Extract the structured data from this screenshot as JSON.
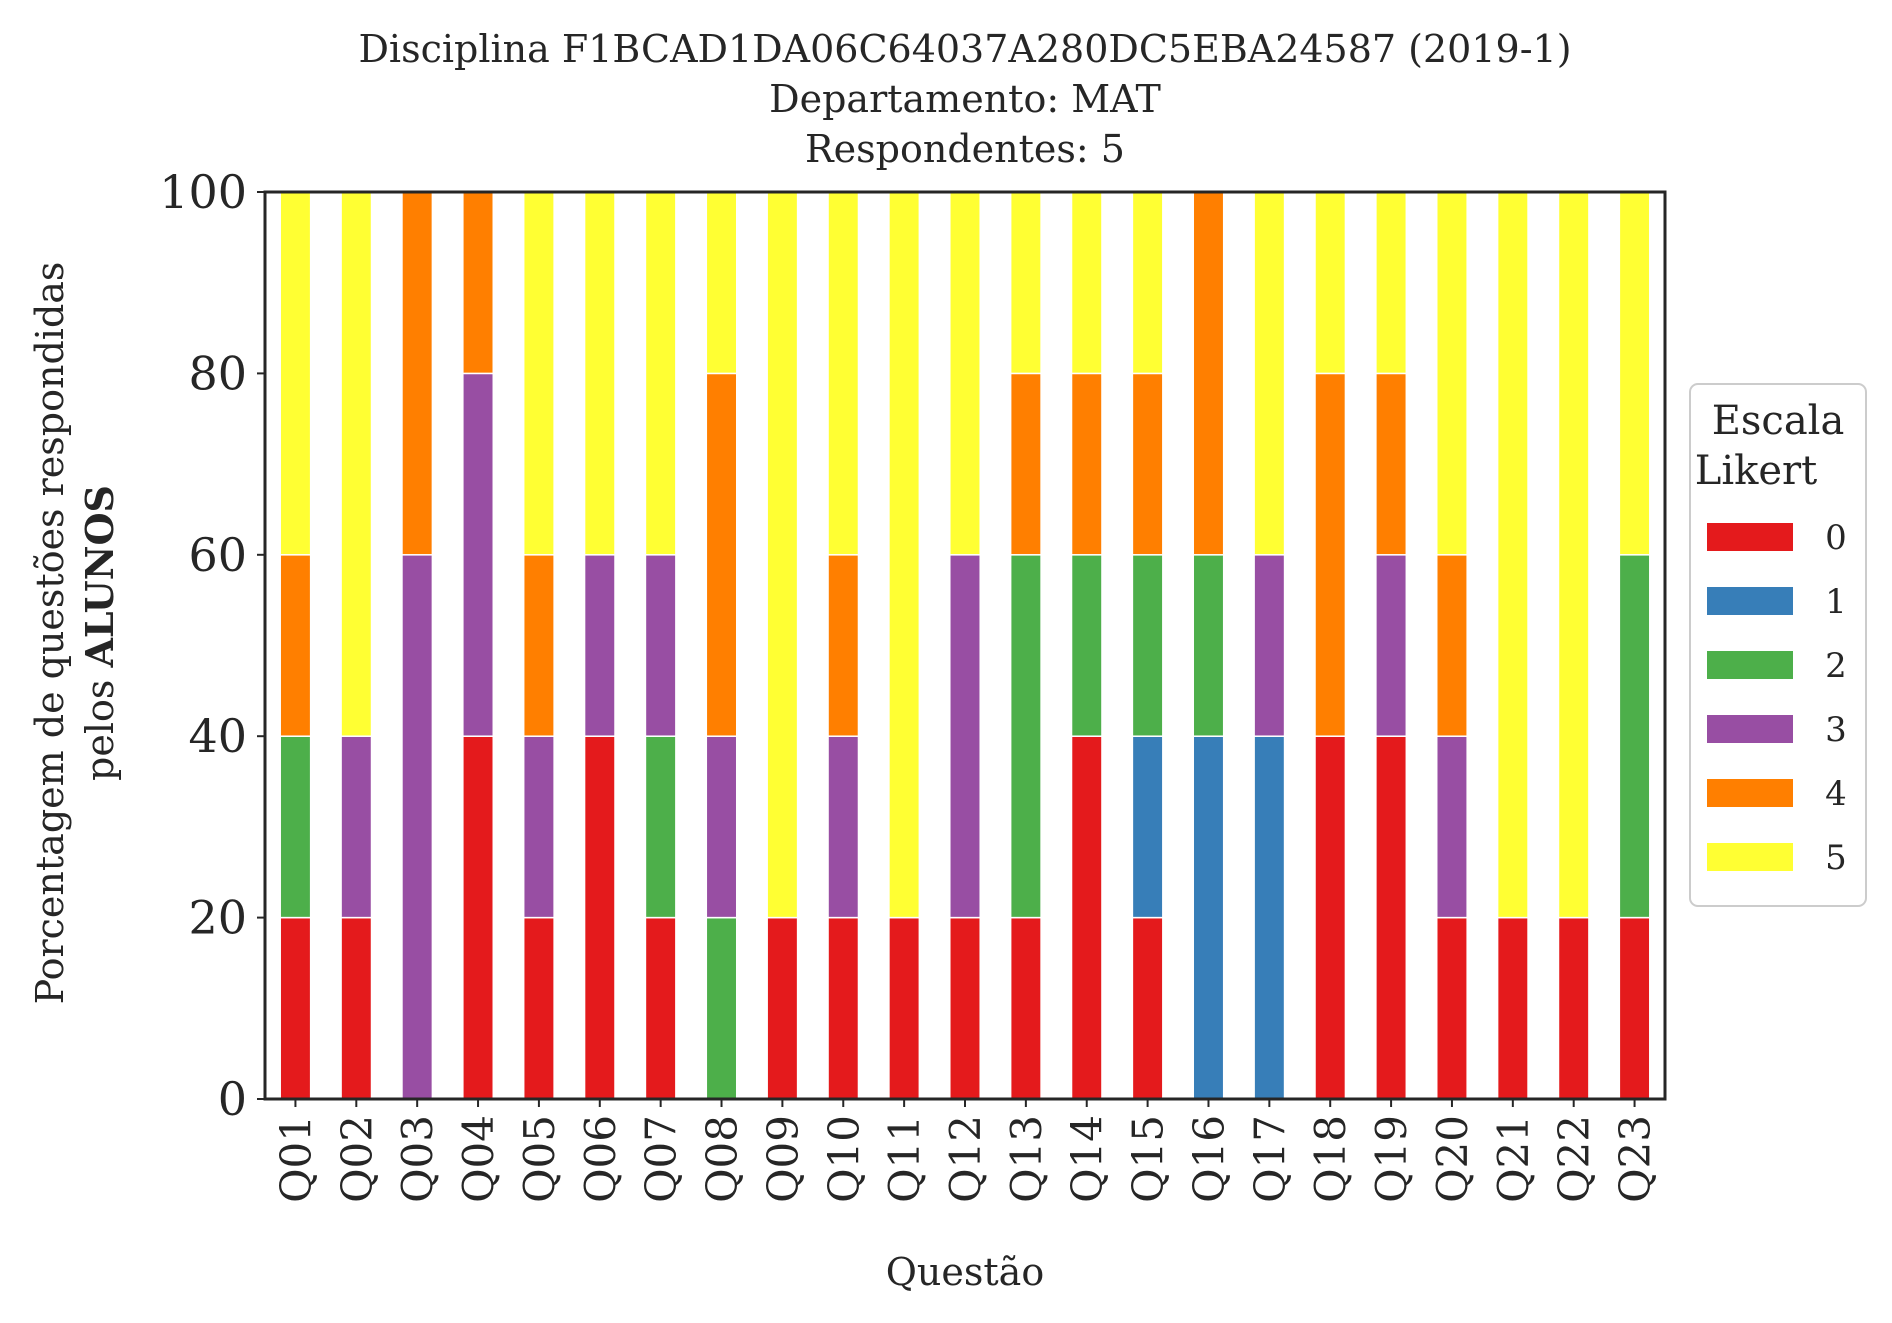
{
  "chart_data": {
    "type": "bar",
    "stacked": true,
    "title_lines": [
      "Disciplina F1BCAD1DA06C64037A280DC5EBA24587 (2019-1)",
      "Departamento: MAT",
      "Respondentes: 5"
    ],
    "xlabel": "Questão",
    "ylabel_line1": "Porcentagem de questões respondidas",
    "ylabel_line2_prefix": "pelos ",
    "ylabel_line2_bold": "ALUNOS",
    "ylim": [
      0,
      100
    ],
    "yticks": [
      0,
      20,
      40,
      60,
      80,
      100
    ],
    "grid": false,
    "legend": {
      "title_line1": "Escala",
      "title_line2": "Likert",
      "placement": "right"
    },
    "categories": [
      "Q01",
      "Q02",
      "Q03",
      "Q04",
      "Q05",
      "Q06",
      "Q07",
      "Q08",
      "Q09",
      "Q10",
      "Q11",
      "Q12",
      "Q13",
      "Q14",
      "Q15",
      "Q16",
      "Q17",
      "Q18",
      "Q19",
      "Q20",
      "Q21",
      "Q22",
      "Q23"
    ],
    "series": [
      {
        "name": "0",
        "color": "#e41a1c",
        "values": [
          20,
          20,
          0,
          40,
          20,
          40,
          20,
          0,
          20,
          20,
          20,
          20,
          20,
          40,
          20,
          0,
          0,
          40,
          40,
          20,
          20,
          20,
          20
        ]
      },
      {
        "name": "1",
        "color": "#377eb8",
        "values": [
          0,
          0,
          0,
          0,
          0,
          0,
          0,
          0,
          0,
          0,
          0,
          0,
          0,
          0,
          20,
          40,
          40,
          0,
          0,
          0,
          0,
          0,
          0
        ]
      },
      {
        "name": "2",
        "color": "#4daf4a",
        "values": [
          20,
          0,
          0,
          0,
          0,
          0,
          20,
          20,
          0,
          0,
          0,
          0,
          40,
          20,
          20,
          20,
          0,
          0,
          0,
          0,
          0,
          0,
          40
        ]
      },
      {
        "name": "3",
        "color": "#984ea3",
        "values": [
          0,
          20,
          60,
          40,
          20,
          20,
          20,
          20,
          0,
          20,
          0,
          40,
          0,
          0,
          0,
          0,
          20,
          0,
          20,
          20,
          0,
          0,
          0
        ]
      },
      {
        "name": "4",
        "color": "#ff7f00",
        "values": [
          20,
          0,
          40,
          20,
          20,
          0,
          0,
          40,
          0,
          20,
          0,
          0,
          20,
          20,
          20,
          40,
          0,
          40,
          20,
          20,
          0,
          0,
          0
        ]
      },
      {
        "name": "5",
        "color": "#ffff33",
        "values": [
          40,
          60,
          0,
          0,
          40,
          40,
          40,
          20,
          80,
          40,
          80,
          40,
          20,
          20,
          20,
          0,
          40,
          20,
          20,
          40,
          80,
          80,
          40
        ]
      }
    ]
  }
}
